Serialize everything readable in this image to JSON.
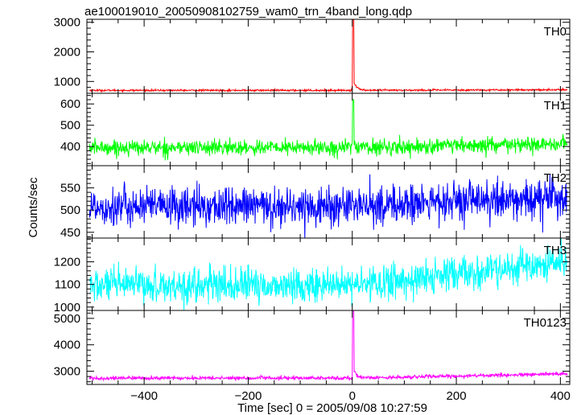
{
  "chart_data": {
    "type": "line",
    "title": "ae100019010_20050908102759_wam0_trn_4band_long.qdp",
    "xlabel": "Time [sec] 0 = 2005/09/08 10:27:59",
    "ylabel": "Counts/sec",
    "xlim": [
      -510,
      418
    ],
    "x_ticks": [
      -400,
      -200,
      0,
      200,
      400
    ],
    "x_tick_labels": [
      "−400",
      "−200",
      "0",
      "200",
      "400"
    ],
    "grid": false,
    "panels": [
      {
        "label": "TH0",
        "color": "#ff0000",
        "ylim": [
          600,
          3100
        ],
        "y_ticks": [
          1000,
          2000,
          3000
        ],
        "y_tick_labels": [
          "1000",
          "2000",
          "3000"
        ],
        "baseline_start": 700,
        "baseline_end": 720,
        "noise": 15,
        "peak": 3100
      },
      {
        "label": "TH1",
        "color": "#00ff00",
        "ylim": [
          310,
          650
        ],
        "y_ticks": [
          400,
          500,
          600
        ],
        "y_tick_labels": [
          "400",
          "500",
          "600"
        ],
        "baseline_start": 395,
        "baseline_end": 410,
        "noise": 18,
        "peak": 620
      },
      {
        "label": "TH2",
        "color": "#0000ff",
        "ylim": [
          437,
          600
        ],
        "y_ticks": [
          450,
          500,
          550
        ],
        "y_tick_labels": [
          "450",
          "500",
          "550"
        ],
        "baseline_start": 508,
        "baseline_end": 528,
        "noise": 22,
        "peak": 520
      },
      {
        "label": "TH3",
        "color": "#00ffff",
        "ylim": [
          985,
          1305
        ],
        "y_ticks": [
          1000,
          1100,
          1200
        ],
        "y_tick_labels": [
          "1000",
          "1100",
          "1200"
        ],
        "baseline_start": 1095,
        "baseline_end": 1195,
        "noise": 38,
        "peak": 1100
      },
      {
        "label": "TH0123",
        "color": "#ff00ff",
        "ylim": [
          2500,
          5300
        ],
        "y_ticks": [
          3000,
          4000,
          5000
        ],
        "y_tick_labels": [
          "3000",
          "4000",
          "5000"
        ],
        "baseline_start": 2740,
        "baseline_end": 2900,
        "noise": 35,
        "peak": 5350
      }
    ]
  }
}
